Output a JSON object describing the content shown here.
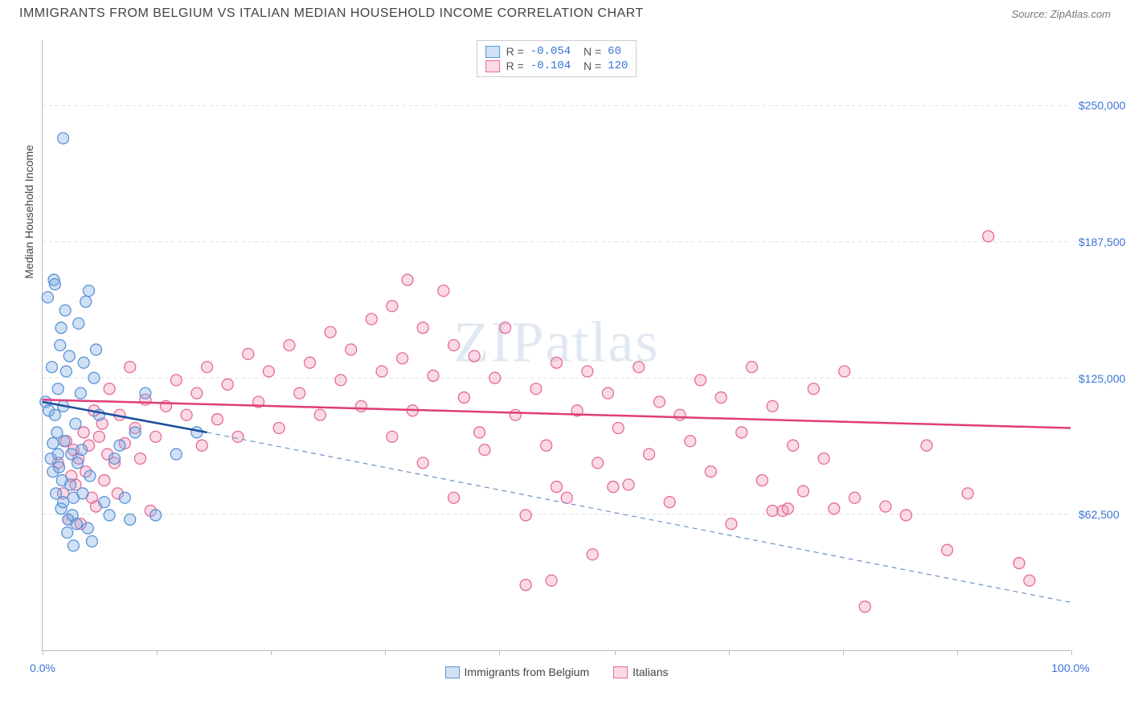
{
  "header": {
    "title": "IMMIGRANTS FROM BELGIUM VS ITALIAN MEDIAN HOUSEHOLD INCOME CORRELATION CHART",
    "source": "Source: ZipAtlas.com"
  },
  "watermark": "ZIPatlas",
  "chart": {
    "type": "scatter",
    "xlim": [
      0,
      100
    ],
    "ylim": [
      0,
      280000
    ],
    "x_ticks": [
      0,
      11.1,
      22.2,
      33.3,
      44.4,
      55.6,
      66.7,
      77.8,
      88.9,
      100
    ],
    "x_tick_labels_shown": {
      "0": "0.0%",
      "100": "100.0%"
    },
    "y_grid": [
      62500,
      125000,
      187500,
      250000
    ],
    "y_tick_labels": [
      "$62,500",
      "$125,000",
      "$187,500",
      "$250,000"
    ],
    "y_axis_label": "Median Household Income",
    "background_color": "#ffffff",
    "grid_color": "#dddddd",
    "axis_color": "#bbbbbb",
    "tick_label_color": "#3b74d6",
    "marker_radius": 7,
    "marker_stroke_width": 1.3,
    "series": [
      {
        "name": "Immigrants from Belgium",
        "fill": "rgba(120,170,230,0.35)",
        "stroke": "#5a94d6",
        "trend_color": "#1b4f9c",
        "trend_dash_color": "#6d93c5",
        "R": "-0.054",
        "N": "60",
        "trend_solid": {
          "x1": 0,
          "y1": 114000,
          "x2": 16,
          "y2": 100000
        },
        "trend_dashed": {
          "x1": 16,
          "y1": 100000,
          "x2": 100,
          "y2": 22000
        },
        "points": [
          [
            0.3,
            114000
          ],
          [
            0.5,
            162000
          ],
          [
            0.6,
            110000
          ],
          [
            0.8,
            88000
          ],
          [
            0.9,
            130000
          ],
          [
            1.0,
            95000
          ],
          [
            1.0,
            82000
          ],
          [
            1.1,
            170000
          ],
          [
            1.2,
            108000
          ],
          [
            1.2,
            168000
          ],
          [
            1.3,
            72000
          ],
          [
            1.4,
            100000
          ],
          [
            1.5,
            120000
          ],
          [
            1.5,
            90000
          ],
          [
            1.6,
            84000
          ],
          [
            1.7,
            140000
          ],
          [
            1.8,
            65000
          ],
          [
            1.8,
            148000
          ],
          [
            1.9,
            78000
          ],
          [
            2.0,
            112000
          ],
          [
            2.0,
            68000
          ],
          [
            2.1,
            96000
          ],
          [
            2.2,
            156000
          ],
          [
            2.3,
            128000
          ],
          [
            2.4,
            54000
          ],
          [
            2.5,
            60000
          ],
          [
            2.6,
            135000
          ],
          [
            2.7,
            76000
          ],
          [
            2.8,
            90000
          ],
          [
            2.9,
            62000
          ],
          [
            3.0,
            48000
          ],
          [
            3.0,
            70000
          ],
          [
            3.2,
            104000
          ],
          [
            3.3,
            58000
          ],
          [
            3.4,
            86000
          ],
          [
            3.5,
            150000
          ],
          [
            3.7,
            118000
          ],
          [
            3.8,
            92000
          ],
          [
            3.9,
            72000
          ],
          [
            4.0,
            132000
          ],
          [
            4.2,
            160000
          ],
          [
            4.4,
            56000
          ],
          [
            4.6,
            80000
          ],
          [
            4.8,
            50000
          ],
          [
            5.0,
            125000
          ],
          [
            5.2,
            138000
          ],
          [
            5.5,
            108000
          ],
          [
            6.0,
            68000
          ],
          [
            6.5,
            62000
          ],
          [
            7.0,
            88000
          ],
          [
            7.5,
            94000
          ],
          [
            8.0,
            70000
          ],
          [
            8.5,
            60000
          ],
          [
            9.0,
            100000
          ],
          [
            10.0,
            118000
          ],
          [
            11.0,
            62000
          ],
          [
            13.0,
            90000
          ],
          [
            15.0,
            100000
          ],
          [
            2.0,
            235000
          ],
          [
            4.5,
            165000
          ]
        ]
      },
      {
        "name": "Italians",
        "fill": "rgba(240,150,180,0.35)",
        "stroke": "#e66a9a",
        "trend_color": "#e03c7a",
        "R": "-0.104",
        "N": "120",
        "trend_solid": {
          "x1": 0,
          "y1": 115000,
          "x2": 100,
          "y2": 102000
        },
        "points": [
          [
            1.5,
            86000
          ],
          [
            2.0,
            72000
          ],
          [
            2.3,
            96000
          ],
          [
            2.5,
            60000
          ],
          [
            2.8,
            80000
          ],
          [
            3.0,
            92000
          ],
          [
            3.2,
            76000
          ],
          [
            3.5,
            88000
          ],
          [
            3.7,
            58000
          ],
          [
            4.0,
            100000
          ],
          [
            4.2,
            82000
          ],
          [
            4.5,
            94000
          ],
          [
            4.8,
            70000
          ],
          [
            5.0,
            110000
          ],
          [
            5.2,
            66000
          ],
          [
            5.5,
            98000
          ],
          [
            5.8,
            104000
          ],
          [
            6.0,
            78000
          ],
          [
            6.3,
            90000
          ],
          [
            6.5,
            120000
          ],
          [
            7.0,
            86000
          ],
          [
            7.3,
            72000
          ],
          [
            7.5,
            108000
          ],
          [
            8.0,
            95000
          ],
          [
            8.5,
            130000
          ],
          [
            9.0,
            102000
          ],
          [
            9.5,
            88000
          ],
          [
            10.0,
            115000
          ],
          [
            10.5,
            64000
          ],
          [
            11.0,
            98000
          ],
          [
            12.0,
            112000
          ],
          [
            13.0,
            124000
          ],
          [
            14.0,
            108000
          ],
          [
            15.0,
            118000
          ],
          [
            15.5,
            94000
          ],
          [
            16.0,
            130000
          ],
          [
            17.0,
            106000
          ],
          [
            18.0,
            122000
          ],
          [
            19.0,
            98000
          ],
          [
            20.0,
            136000
          ],
          [
            21.0,
            114000
          ],
          [
            22.0,
            128000
          ],
          [
            23.0,
            102000
          ],
          [
            24.0,
            140000
          ],
          [
            25.0,
            118000
          ],
          [
            26.0,
            132000
          ],
          [
            27.0,
            108000
          ],
          [
            28.0,
            146000
          ],
          [
            29.0,
            124000
          ],
          [
            30.0,
            138000
          ],
          [
            31.0,
            112000
          ],
          [
            32.0,
            152000
          ],
          [
            33.0,
            128000
          ],
          [
            34.0,
            158000
          ],
          [
            35.0,
            134000
          ],
          [
            35.5,
            170000
          ],
          [
            36.0,
            110000
          ],
          [
            37.0,
            148000
          ],
          [
            38.0,
            126000
          ],
          [
            39.0,
            165000
          ],
          [
            40.0,
            140000
          ],
          [
            41.0,
            116000
          ],
          [
            42.0,
            135000
          ],
          [
            42.5,
            100000
          ],
          [
            43.0,
            92000
          ],
          [
            44.0,
            125000
          ],
          [
            45.0,
            148000
          ],
          [
            46.0,
            108000
          ],
          [
            47.0,
            62000
          ],
          [
            48.0,
            120000
          ],
          [
            49.0,
            94000
          ],
          [
            49.5,
            32000
          ],
          [
            50.0,
            132000
          ],
          [
            51.0,
            70000
          ],
          [
            52.0,
            110000
          ],
          [
            53.0,
            128000
          ],
          [
            53.5,
            44000
          ],
          [
            54.0,
            86000
          ],
          [
            55.0,
            118000
          ],
          [
            56.0,
            102000
          ],
          [
            57.0,
            76000
          ],
          [
            58.0,
            130000
          ],
          [
            59.0,
            90000
          ],
          [
            60.0,
            114000
          ],
          [
            61.0,
            68000
          ],
          [
            62.0,
            108000
          ],
          [
            63.0,
            96000
          ],
          [
            64.0,
            124000
          ],
          [
            65.0,
            82000
          ],
          [
            66.0,
            116000
          ],
          [
            67.0,
            58000
          ],
          [
            68.0,
            100000
          ],
          [
            69.0,
            130000
          ],
          [
            70.0,
            78000
          ],
          [
            71.0,
            112000
          ],
          [
            72.0,
            64000
          ],
          [
            73.0,
            94000
          ],
          [
            74.0,
            73000
          ],
          [
            75.0,
            120000
          ],
          [
            76.0,
            88000
          ],
          [
            77.0,
            65000
          ],
          [
            78.0,
            128000
          ],
          [
            79.0,
            70000
          ],
          [
            80.0,
            20000
          ],
          [
            82.0,
            66000
          ],
          [
            84.0,
            62000
          ],
          [
            86.0,
            94000
          ],
          [
            88.0,
            46000
          ],
          [
            90.0,
            72000
          ],
          [
            92.0,
            190000
          ],
          [
            95.0,
            40000
          ],
          [
            96.0,
            32000
          ],
          [
            71.0,
            64000
          ],
          [
            72.5,
            65000
          ],
          [
            55.5,
            75000
          ],
          [
            47.0,
            30000
          ],
          [
            50.0,
            75000
          ],
          [
            34.0,
            98000
          ],
          [
            37.0,
            86000
          ],
          [
            40.0,
            70000
          ]
        ]
      }
    ],
    "legend_bottom": [
      "Immigrants from Belgium",
      "Italians"
    ]
  }
}
